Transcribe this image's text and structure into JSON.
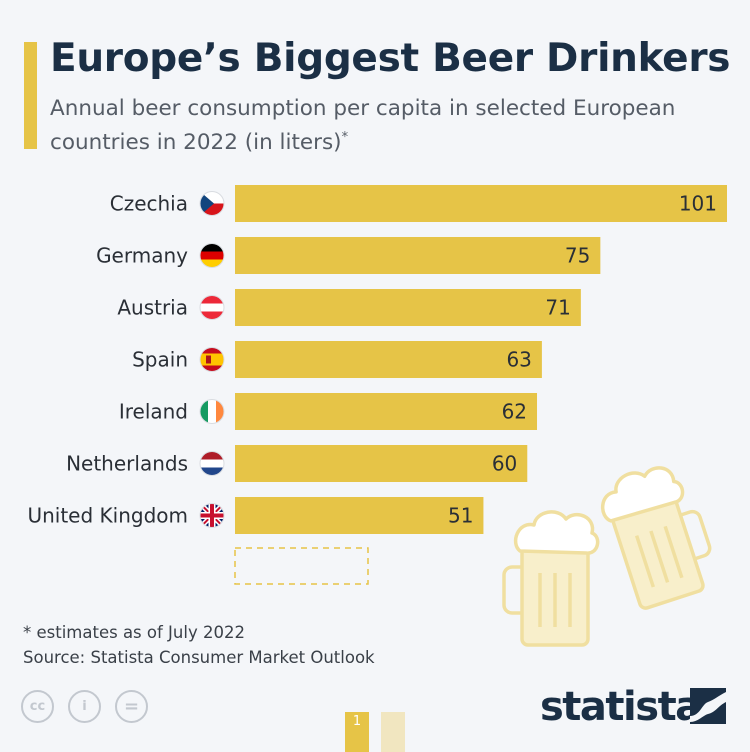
{
  "title": "Europe’s Biggest Beer Drinkers",
  "subtitle": "Annual beer consumption per capita in selected European countries in 2022 (in liters)",
  "subtitle_mark": "*",
  "footnote": "* estimates as of July 2022",
  "source": "Source: Statista Consumer Market Outlook",
  "brand": "statista",
  "page_number": "1",
  "colors": {
    "bar": "#e6c447",
    "title": "#1b2f45",
    "accent": "#e6c447",
    "mug": "#f0dfa0"
  },
  "icons": [
    "cc-icon",
    "info-person-icon",
    "equals-icon",
    "beer-mugs-illustration",
    "statista-logo-icon"
  ],
  "chart_data": {
    "type": "bar",
    "orientation": "horizontal",
    "categories": [
      "Czechia",
      "Germany",
      "Austria",
      "Spain",
      "Ireland",
      "Netherlands",
      "United Kingdom"
    ],
    "values": [
      101,
      75,
      71,
      63,
      62,
      60,
      51
    ],
    "flags": [
      "czech-flag-icon",
      "german-flag-icon",
      "austrian-flag-icon",
      "spanish-flag-icon",
      "irish-flag-icon",
      "dutch-flag-icon",
      "uk-flag-icon"
    ],
    "title": "Europe’s Biggest Beer Drinkers",
    "xlabel": "",
    "ylabel": "",
    "xlim": [
      0,
      101
    ],
    "grid": false,
    "data_labels": true
  }
}
